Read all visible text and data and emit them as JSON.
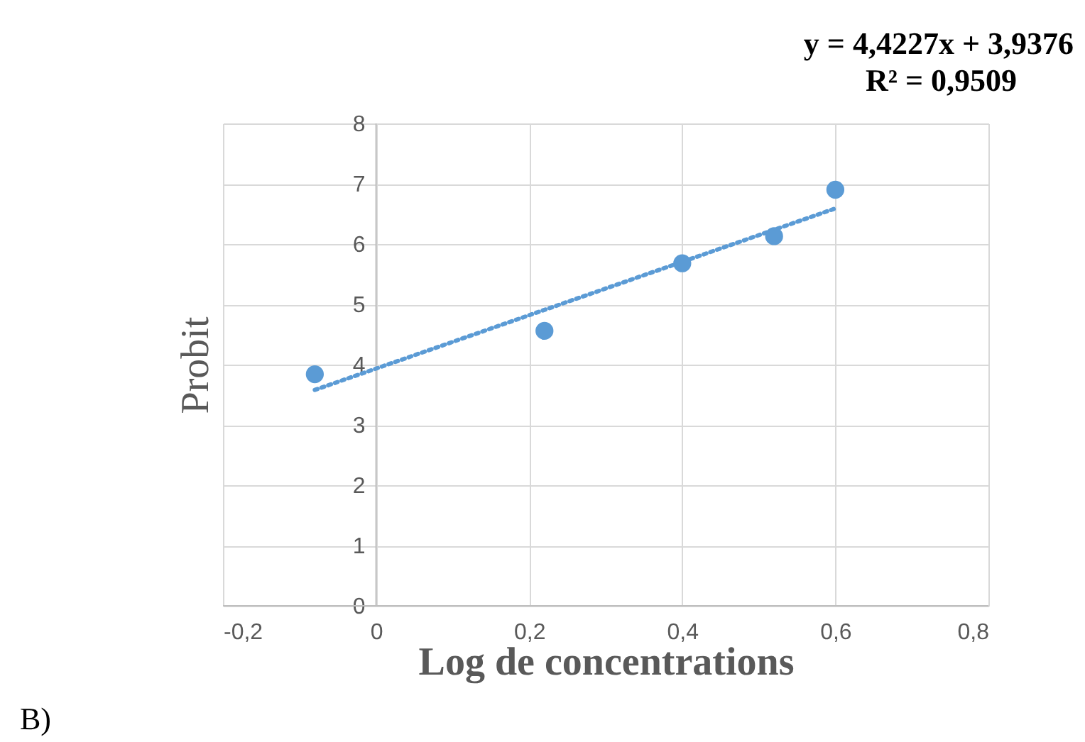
{
  "chart_data": {
    "type": "scatter",
    "xlabel": "Log de concentrations",
    "ylabel": "Probit",
    "xlim": [
      -0.2,
      0.8
    ],
    "xticks": [
      {
        "value": -0.2,
        "label": "-0,2"
      },
      0,
      {
        "value": 0.2,
        "label": "0,2"
      },
      {
        "value": 0.4,
        "label": "0,4"
      },
      {
        "value": 0.6,
        "label": "0,6"
      },
      {
        "value": 0.8,
        "label": "0,8"
      }
    ],
    "ylim": [
      0,
      8
    ],
    "yticks": [
      0,
      1,
      2,
      3,
      4,
      5,
      6,
      7,
      8
    ],
    "grid": true,
    "series": [
      {
        "color": "#5b9bd5",
        "marker": "circle",
        "x": [
          -0.08,
          0.22,
          0.4,
          0.52,
          0.6
        ],
        "values": [
          3.84,
          4.56,
          5.68,
          6.13,
          6.9
        ]
      },
      {
        "type": "line",
        "color": "#5b9bd5",
        "line_style": "dotted",
        "x": [
          -0.08,
          0.6
        ],
        "values": [
          3.58,
          6.59
        ]
      }
    ],
    "annotations": [
      "y = 4,4227x + 3,9376",
      "R² = 0,9509",
      "B)"
    ]
  }
}
